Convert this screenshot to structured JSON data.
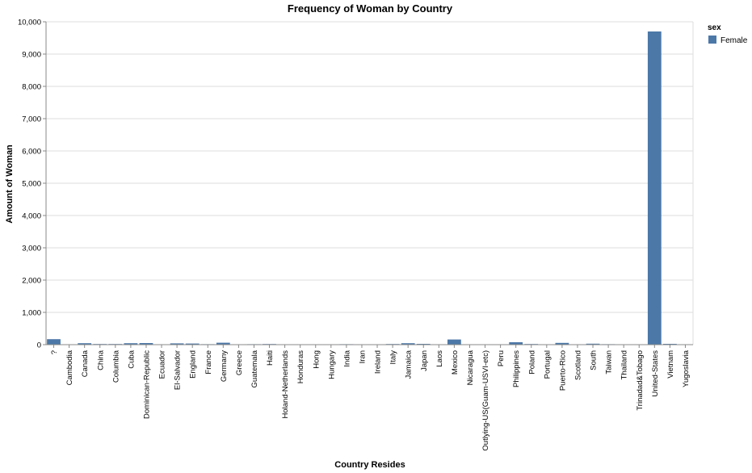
{
  "chart_data": {
    "type": "bar",
    "title": "Frequency of Woman by Country",
    "xlabel": "Country Resides",
    "ylabel": "Amount of Woman",
    "ylim": [
      0,
      10000
    ],
    "yticks": [
      "0",
      "1,000",
      "2,000",
      "3,000",
      "4,000",
      "5,000",
      "6,000",
      "7,000",
      "8,000",
      "9,000",
      "10,000"
    ],
    "grid": true,
    "legend": {
      "title": "sex",
      "position": "top-right",
      "entries": [
        "Female"
      ]
    },
    "color": "#4c78a8",
    "categories": [
      "?",
      "Cambodia",
      "Canada",
      "China",
      "Columbia",
      "Cuba",
      "Dominican-Republic",
      "Ecuador",
      "El-Salvador",
      "England",
      "France",
      "Germany",
      "Greece",
      "Guatemala",
      "Haiti",
      "Holand-Netherlands",
      "Honduras",
      "Hong",
      "Hungary",
      "India",
      "Iran",
      "Ireland",
      "Italy",
      "Jamaica",
      "Japan",
      "Laos",
      "Mexico",
      "Nicaragua",
      "Outlying-US(Guam-USVI-etc)",
      "Peru",
      "Philippines",
      "Poland",
      "Portugal",
      "Puerto-Rico",
      "Scotland",
      "South",
      "Taiwan",
      "Thailand",
      "Trinadad&Tobago",
      "United-States",
      "Vietnam",
      "Yugoslavia"
    ],
    "series": [
      {
        "name": "Female",
        "values": [
          170,
          5,
          45,
          20,
          20,
          45,
          50,
          10,
          40,
          35,
          15,
          60,
          10,
          15,
          20,
          1,
          5,
          10,
          5,
          15,
          5,
          5,
          20,
          45,
          25,
          5,
          160,
          10,
          5,
          10,
          75,
          20,
          10,
          55,
          5,
          30,
          15,
          10,
          10,
          9700,
          25,
          5
        ]
      }
    ]
  }
}
